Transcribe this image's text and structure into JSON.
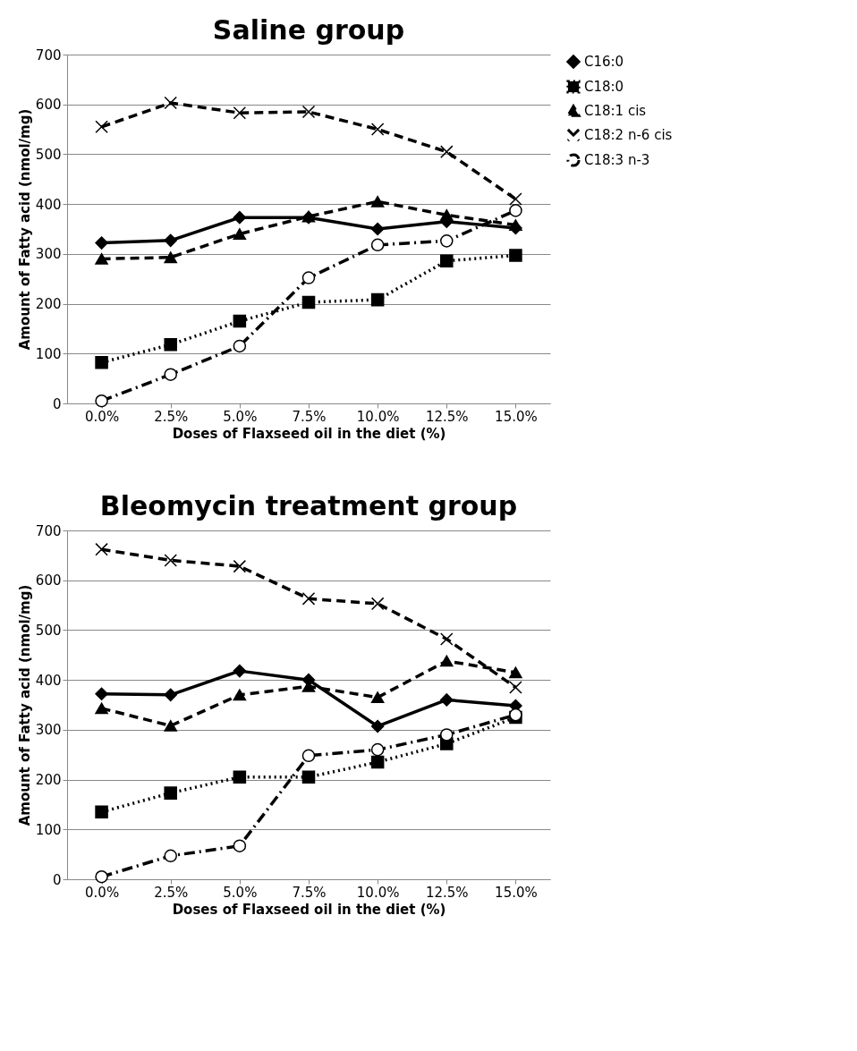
{
  "chart_data": [
    {
      "type": "line",
      "title": "Saline group",
      "xlabel": "Doses of Flaxseed oil in the diet (%)",
      "ylabel": "Amount of Fatty acid (nmol/mg)",
      "categories": [
        "0.0%",
        "2.5%",
        "5.0%",
        "7.5%",
        "10.0%",
        "12.5%",
        "15.0%"
      ],
      "series": [
        {
          "name": "C16:0",
          "color": "#000000",
          "marker": "diamond",
          "line_style": "solid",
          "values": [
            322,
            327,
            373,
            373,
            350,
            365,
            352
          ]
        },
        {
          "name": "C18:0",
          "color": "#000000",
          "marker": "square",
          "line_style": "dotted",
          "values": [
            82,
            118,
            165,
            203,
            208,
            286,
            297
          ]
        },
        {
          "name": "C18:1 cis",
          "color": "#000000",
          "marker": "triangle",
          "line_style": "dashed",
          "values": [
            290,
            293,
            340,
            375,
            405,
            378,
            358
          ]
        },
        {
          "name": "C18:2 n-6 cis",
          "color": "#000000",
          "marker": "cross",
          "line_style": "dashed",
          "values": [
            555,
            603,
            583,
            585,
            550,
            505,
            410
          ]
        },
        {
          "name": "C18:3 n-3",
          "color": "#000000",
          "marker": "circle",
          "line_style": "dashdot",
          "values": [
            5,
            58,
            115,
            252,
            318,
            326,
            387
          ]
        }
      ],
      "ylim": [
        0,
        700
      ],
      "yticks": [
        0,
        100,
        200,
        300,
        400,
        500,
        600,
        700
      ],
      "grid": "y",
      "legend": "right"
    },
    {
      "type": "line",
      "title": "Bleomycin treatment group",
      "xlabel": "Doses of Flaxseed oil in the diet (%)",
      "ylabel": "Amount of Fatty acid (nmol/mg)",
      "categories": [
        "0.0%",
        "2.5%",
        "5.0%",
        "7.5%",
        "10.0%",
        "12.5%",
        "15.0%"
      ],
      "series": [
        {
          "name": "C16:0",
          "color": "#000000",
          "marker": "diamond",
          "line_style": "solid",
          "values": [
            372,
            370,
            418,
            400,
            307,
            360,
            348
          ]
        },
        {
          "name": "C18:0",
          "color": "#000000",
          "marker": "square",
          "line_style": "dotted",
          "values": [
            135,
            173,
            205,
            205,
            235,
            272,
            325
          ]
        },
        {
          "name": "C18:1 cis",
          "color": "#000000",
          "marker": "triangle",
          "line_style": "dashed",
          "values": [
            343,
            308,
            370,
            387,
            365,
            438,
            415
          ]
        },
        {
          "name": "C18:2 n-6 cis",
          "color": "#000000",
          "marker": "cross",
          "line_style": "dashed",
          "values": [
            662,
            640,
            628,
            563,
            553,
            482,
            385
          ]
        },
        {
          "name": "C18:3 n-3",
          "color": "#000000",
          "marker": "circle",
          "line_style": "dashdot",
          "values": [
            5,
            47,
            67,
            248,
            260,
            290,
            330
          ]
        }
      ],
      "ylim": [
        0,
        700
      ],
      "yticks": [
        0,
        100,
        200,
        300,
        400,
        500,
        600,
        700
      ],
      "grid": "y",
      "legend": "right"
    }
  ]
}
